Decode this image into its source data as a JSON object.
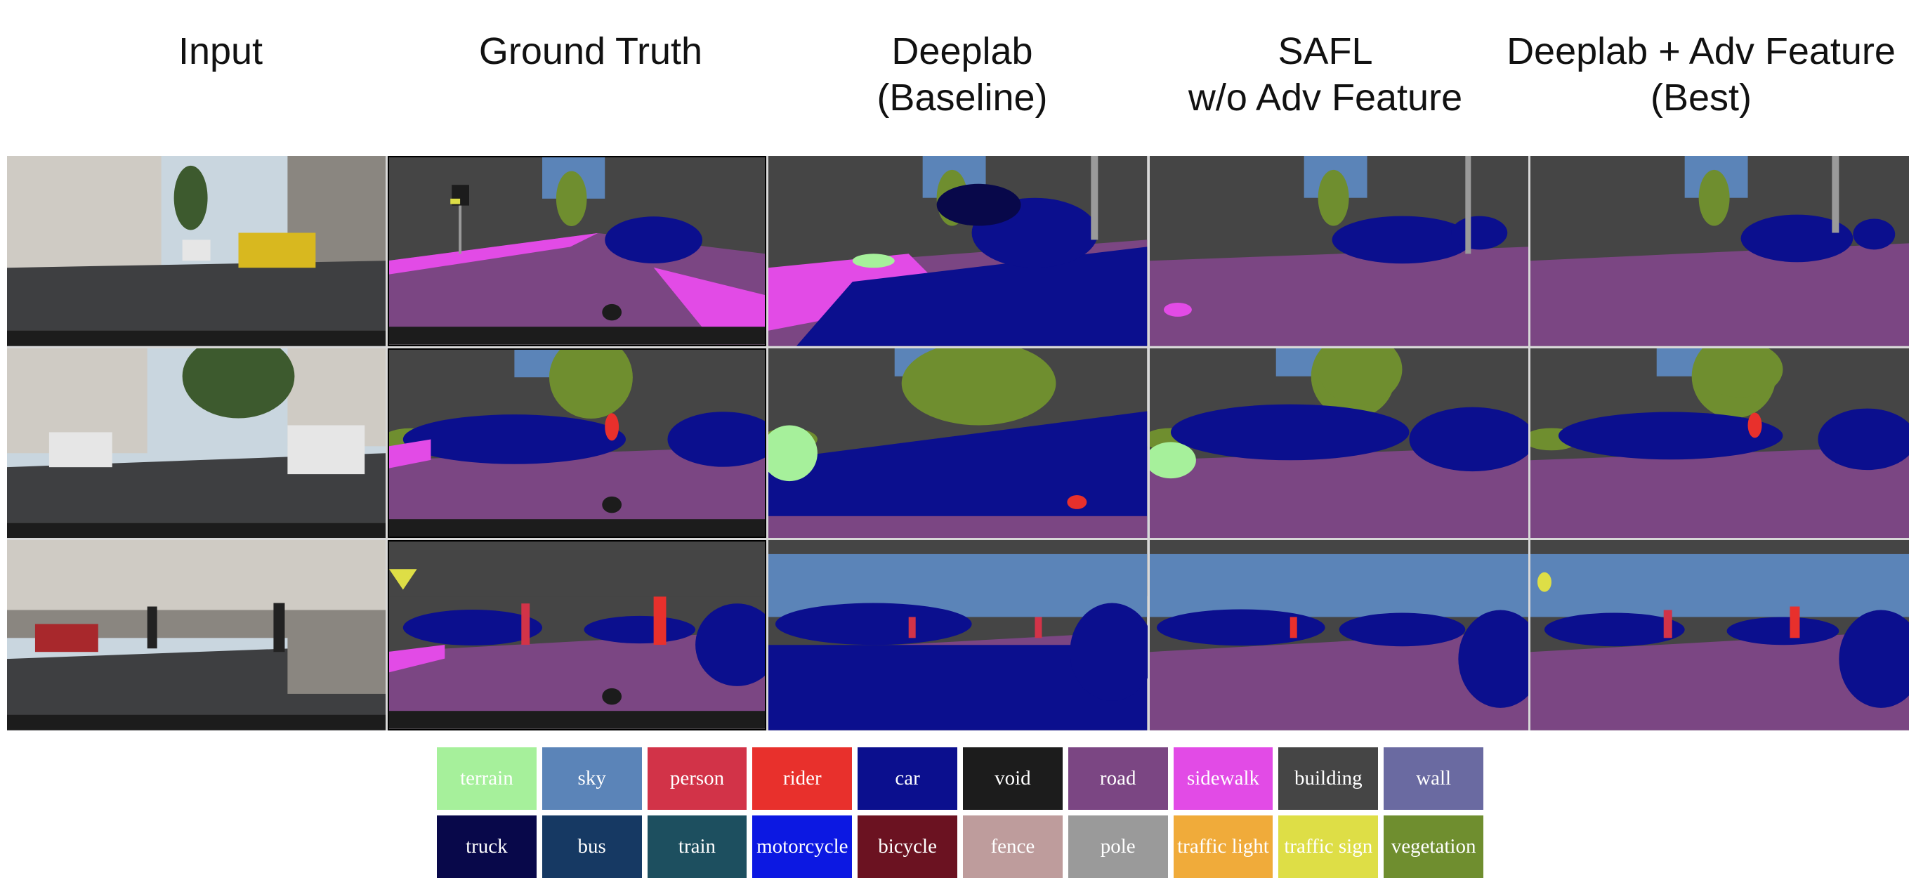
{
  "columns": [
    {
      "line1": "Input",
      "line2": ""
    },
    {
      "line1": "Ground Truth",
      "line2": ""
    },
    {
      "line1": "Deeplab",
      "line2": "(Baseline)"
    },
    {
      "line1": "SAFL",
      "line2": "w/o Adv Feature"
    },
    {
      "line1": "Deeplab + Adv Feature",
      "line2": "(Best)"
    }
  ],
  "legend": [
    {
      "label": "terrain",
      "color": "#a6f09b",
      "text_color": "#ffffff"
    },
    {
      "label": "sky",
      "color": "#5b84b8",
      "text_color": "#ffffff"
    },
    {
      "label": "person",
      "color": "#d23348",
      "text_color": "#ffffff"
    },
    {
      "label": "rider",
      "color": "#e8302c",
      "text_color": "#ffffff"
    },
    {
      "label": "car",
      "color": "#0b0f8e",
      "text_color": "#ffffff"
    },
    {
      "label": "void",
      "color": "#1c1c1c",
      "text_color": "#ffffff"
    },
    {
      "label": "road",
      "color": "#7b4683",
      "text_color": "#ffffff"
    },
    {
      "label": "sidewalk",
      "color": "#e24be6",
      "text_color": "#ffffff"
    },
    {
      "label": "building",
      "color": "#454545",
      "text_color": "#ffffff"
    },
    {
      "label": "wall",
      "color": "#6a6aa1",
      "text_color": "#ffffff"
    },
    {
      "label": "truck",
      "color": "#08084a",
      "text_color": "#ffffff"
    },
    {
      "label": "bus",
      "color": "#163963",
      "text_color": "#ffffff"
    },
    {
      "label": "train",
      "color": "#1d4f5f",
      "text_color": "#ffffff"
    },
    {
      "label": "motorcycle",
      "color": "#0c18e2",
      "text_color": "#ffffff"
    },
    {
      "label": "bicycle",
      "color": "#6b1221",
      "text_color": "#ffffff"
    },
    {
      "label": "fence",
      "color": "#be9c9c",
      "text_color": "#ffffff"
    },
    {
      "label": "pole",
      "color": "#9a9a9a",
      "text_color": "#ffffff"
    },
    {
      "label": "traffic light",
      "color": "#f0ab3a",
      "text_color": "#ffffff"
    },
    {
      "label": "traffic sign",
      "color": "#dede46",
      "text_color": "#ffffff"
    },
    {
      "label": "vegetation",
      "color": "#6f8e2f",
      "text_color": "#ffffff"
    }
  ],
  "scene_colors": {
    "photo_sky": "#c9d6df",
    "photo_building_light": "#cfcbc4",
    "photo_building_dark": "#8a8680",
    "photo_road": "#3e3f41",
    "photo_sidewalk": "#6b6b6b",
    "photo_tree": "#3d5a2e",
    "photo_car_white": "#e6e6e6",
    "photo_car_yellow": "#d8b81f",
    "photo_car_red": "#a8282c",
    "photo_person": "#222222",
    "photo_hood": "#1c1c1c"
  }
}
